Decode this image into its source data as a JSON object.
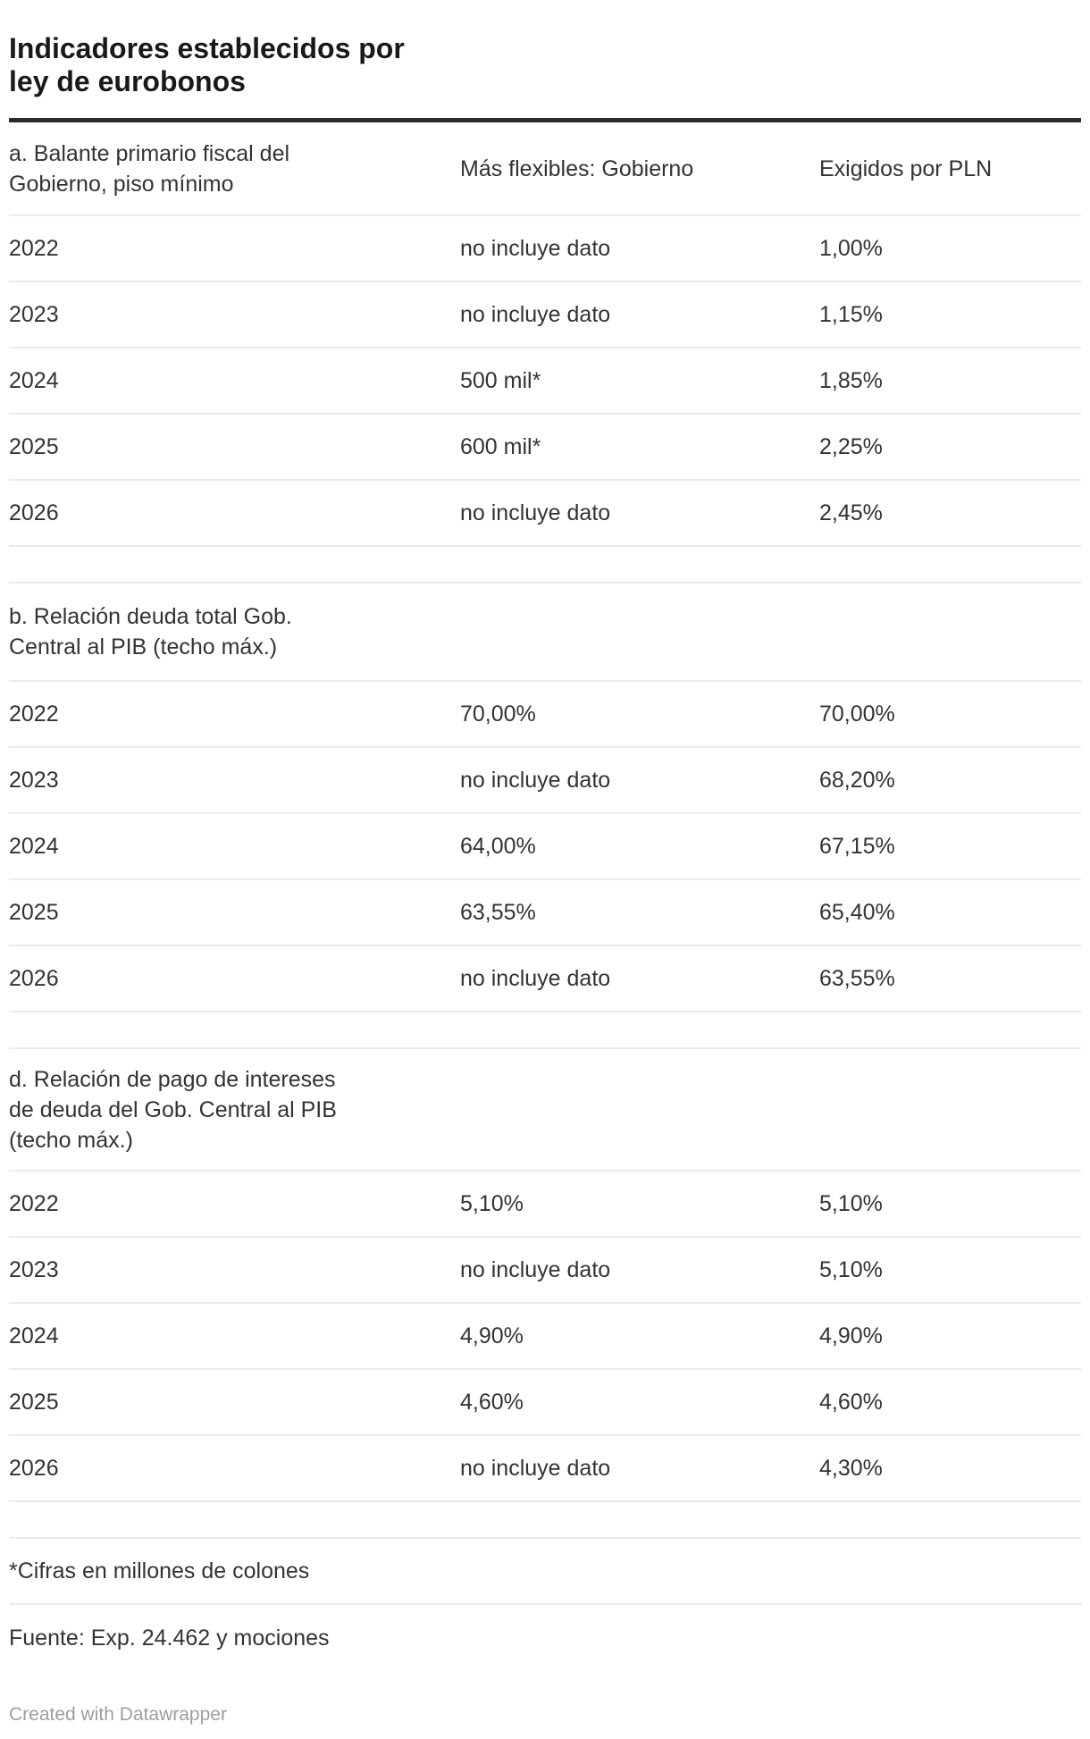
{
  "chart_data": {
    "type": "table",
    "title": "Indicadores establecidos por ley de eurobonos",
    "title_lines": [
      "Indicadores establecidos por",
      "ley de eurobonos"
    ],
    "col_headers": [
      "Más flexibles: Gobierno",
      "Exigidos por PLN"
    ],
    "sections": [
      {
        "label": "a. Balante primario fiscal del Gobierno, piso mínimo",
        "label_lines": [
          "a. Balante primario fiscal del",
          "Gobierno, piso mínimo"
        ],
        "rows": [
          {
            "year": "2022",
            "gobierno": "no incluye dato",
            "pln": "1,00%"
          },
          {
            "year": "2023",
            "gobierno": "no incluye dato",
            "pln": "1,15%"
          },
          {
            "year": "2024",
            "gobierno": "500 mil*",
            "pln": "1,85%"
          },
          {
            "year": "2025",
            "gobierno": "600 mil*",
            "pln": "2,25%"
          },
          {
            "year": "2026",
            "gobierno": "no incluye dato",
            "pln": "2,45%"
          }
        ]
      },
      {
        "label": "b. Relación deuda total Gob. Central al PIB (techo máx.)",
        "label_lines": [
          "b. Relación deuda total Gob.",
          "Central al PIB (techo máx.)"
        ],
        "rows": [
          {
            "year": "2022",
            "gobierno": "70,00%",
            "pln": "70,00%"
          },
          {
            "year": "2023",
            "gobierno": "no incluye dato",
            "pln": "68,20%"
          },
          {
            "year": "2024",
            "gobierno": "64,00%",
            "pln": "67,15%"
          },
          {
            "year": "2025",
            "gobierno": "63,55%",
            "pln": "65,40%"
          },
          {
            "year": "2026",
            "gobierno": "no incluye dato",
            "pln": "63,55%"
          }
        ]
      },
      {
        "label": "d. Relación de pago de intereses de deuda del Gob. Central al PIB (techo máx.)",
        "label_lines": [
          "d. Relación de pago de intereses",
          "de deuda del Gob. Central al PIB",
          "(techo máx.)"
        ],
        "rows": [
          {
            "year": "2022",
            "gobierno": "5,10%",
            "pln": "5,10%"
          },
          {
            "year": "2023",
            "gobierno": "no incluye dato",
            "pln": "5,10%"
          },
          {
            "year": "2024",
            "gobierno": "4,90%",
            "pln": "4,90%"
          },
          {
            "year": "2025",
            "gobierno": "4,60%",
            "pln": "4,60%"
          },
          {
            "year": "2026",
            "gobierno": "no incluye dato",
            "pln": "4,30%"
          }
        ]
      }
    ],
    "notes": "*Cifras en millones de colones",
    "source": "Fuente: Exp. 24.462 y mociones",
    "attribution": "Created with Datawrapper"
  },
  "colors": {
    "title_text": "#191919",
    "body_text": "#333333",
    "header_rule": "#2b2b2b",
    "row_divider": "#ebebeb",
    "attribution_text": "#9e9e9e"
  }
}
